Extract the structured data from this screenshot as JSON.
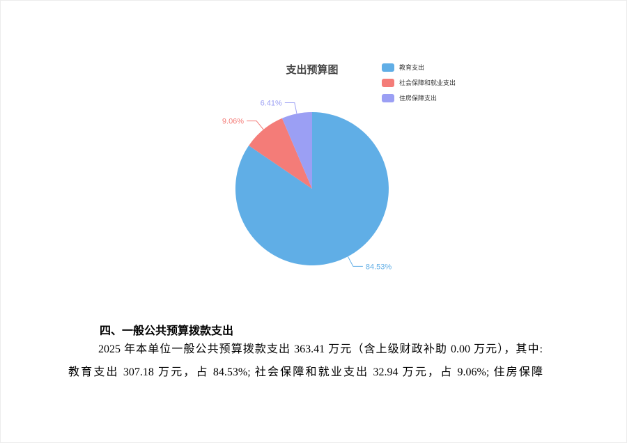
{
  "chart": {
    "title": "支出预算图",
    "title_color": "#464646",
    "legend": {
      "position": "top-right",
      "items": [
        {
          "label": "教育支出",
          "color": "#60AEE6"
        },
        {
          "label": "社会保障和就业支出",
          "color": "#F47C78"
        },
        {
          "label": "住房保障支出",
          "color": "#9B9FF4"
        }
      ]
    }
  },
  "chart_data": {
    "type": "pie",
    "title": "支出预算图",
    "categories": [
      "教育支出",
      "社会保障和就业支出",
      "住房保障支出"
    ],
    "values": [
      84.53,
      9.06,
      6.41
    ],
    "value_unit": "percent",
    "data_labels": [
      "84.53%",
      "9.06%",
      "6.41%"
    ],
    "colors": [
      "#60AEE6",
      "#F47C78",
      "#9B9FF4"
    ],
    "legend_position": "top-right",
    "start_angle": "top",
    "direction": "clockwise"
  },
  "document": {
    "section_heading": "四、一般公共预算拨款支出",
    "paragraph_lines": [
      "2025 年本单位一般公共预算拨款支出 363.41 万元（含上级财政补助 0.00 万元），其中:",
      "教育支出 307.18 万元，占 84.53%; 社会保障和就业支出 32.94 万元，占 9.06%; 住房保障"
    ]
  }
}
